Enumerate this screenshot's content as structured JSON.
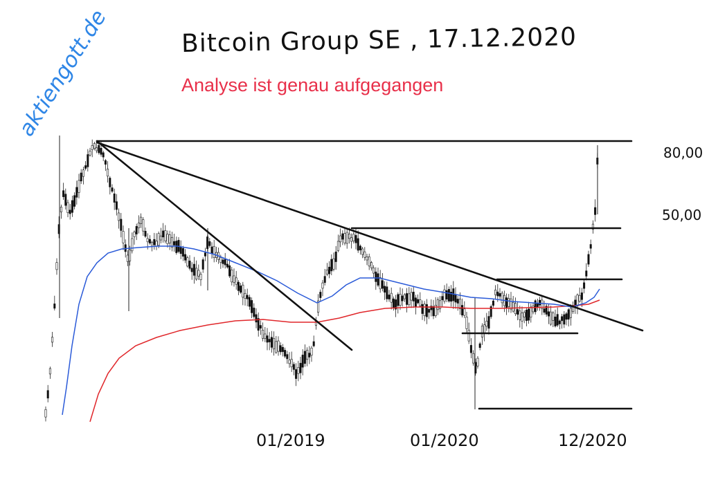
{
  "header": {
    "title": "Bitcoin Group SE , 17.12.2020",
    "subtitle": "Analyse ist genau aufgegangen",
    "brand": "aktiengott.de"
  },
  "colors": {
    "subtitle": "#e8304a",
    "brand": "#2f86e6",
    "ma_short": "#2a5ad8",
    "ma_long": "#e0262a",
    "lines": "#111111"
  },
  "chart_data": {
    "type": "candlestick",
    "x_tick_labels": [
      "01/2019",
      "01/2020",
      "12/2020"
    ],
    "price_labels": [
      "80,00",
      "50,00"
    ],
    "series": [
      {
        "kind": "moving-average",
        "color": "#2a5ad8"
      },
      {
        "kind": "moving-average",
        "color": "#e0262a"
      }
    ],
    "annotations": [
      "downtrend-line-steep",
      "downtrend-line-long",
      "resistance-high",
      "resistance-mid",
      "resistance-low",
      "support-box",
      "support-low"
    ]
  }
}
